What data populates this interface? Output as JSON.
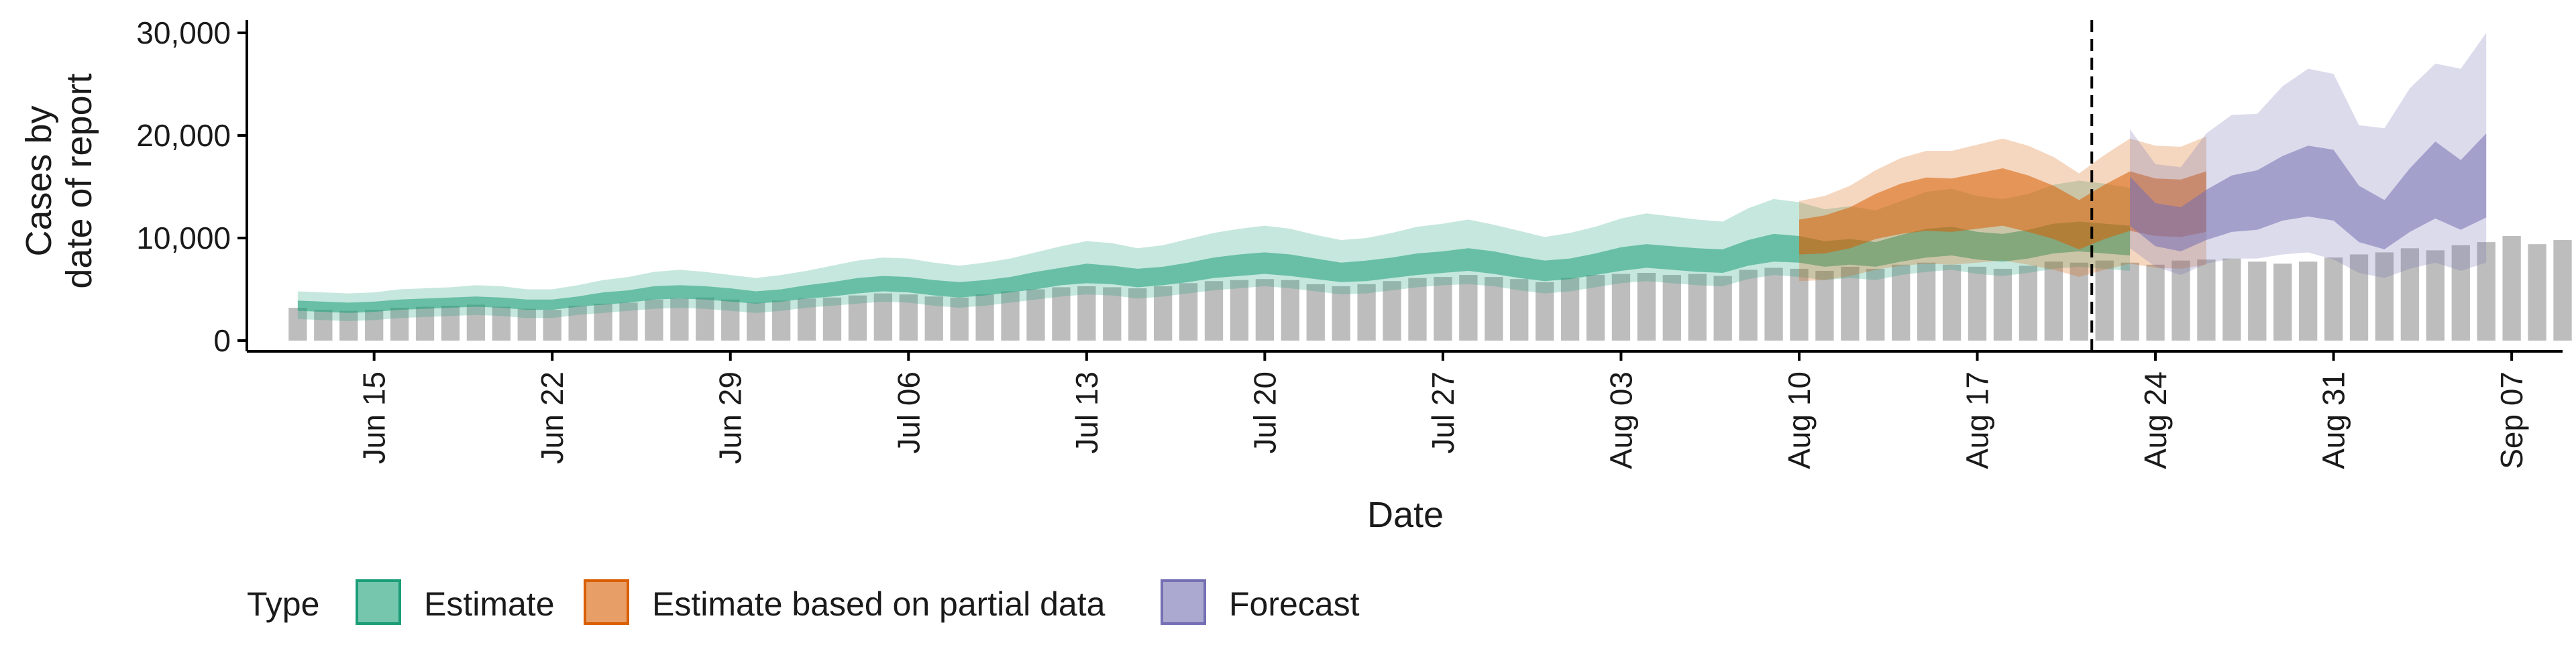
{
  "chart_data": {
    "type": "bar",
    "xlabel": "Date",
    "ylabel": [
      "Cases by",
      "date of report"
    ],
    "ylim": [
      0,
      31000
    ],
    "yticks": [
      0,
      10000,
      20000,
      30000
    ],
    "ytick_labels": [
      "0",
      "10,000",
      "20,000",
      "30,000"
    ],
    "xlim": [
      "2021-06-10",
      "2021-09-09"
    ],
    "xticks": [
      "2021-06-15",
      "2021-06-22",
      "2021-06-29",
      "2021-07-06",
      "2021-07-13",
      "2021-07-20",
      "2021-07-27",
      "2021-08-03",
      "2021-08-10",
      "2021-08-17",
      "2021-08-24",
      "2021-08-31",
      "2021-09-07"
    ],
    "xtick_labels": [
      "Jun 15",
      "Jun 22",
      "Jun 29",
      "Jul 06",
      "Jul 13",
      "Jul 20",
      "Jul 27",
      "Aug 03",
      "Aug 10",
      "Aug 17",
      "Aug 24",
      "Aug 31",
      "Sep 07"
    ],
    "forecast_date": "2021-08-22",
    "bar_start_date": "2021-06-12",
    "reported_cases": [
      3200,
      3000,
      2900,
      3000,
      3200,
      3300,
      3400,
      3500,
      3300,
      3100,
      3000,
      3400,
      3600,
      3700,
      4000,
      4100,
      4200,
      4000,
      3700,
      3900,
      4100,
      4200,
      4400,
      4600,
      4500,
      4300,
      4200,
      4500,
      4800,
      5000,
      5200,
      5300,
      5200,
      5100,
      5300,
      5600,
      5800,
      5900,
      6000,
      5900,
      5500,
      5300,
      5500,
      5800,
      6100,
      6200,
      6400,
      6200,
      6000,
      5700,
      6100,
      6400,
      6500,
      6600,
      6400,
      6500,
      6300,
      6900,
      7100,
      7000,
      6800,
      7200,
      7000,
      7400,
      7600,
      7400,
      7200,
      7000,
      7300,
      7700,
      7600,
      7800,
      7600,
      7400,
      7800,
      7900,
      8000,
      7700,
      7500,
      7700,
      8100,
      8400,
      8600,
      9000,
      8800,
      9300,
      9600,
      10200,
      9400,
      9800,
      10600
    ],
    "series": [
      {
        "name": "Estimate",
        "color": "#1b9e77",
        "start_date": "2021-06-12",
        "median": [
          3400,
          3300,
          3200,
          3300,
          3500,
          3600,
          3700,
          3800,
          3700,
          3500,
          3500,
          3800,
          4100,
          4300,
          4600,
          4700,
          4600,
          4400,
          4200,
          4400,
          4700,
          5000,
          5300,
          5500,
          5400,
          5100,
          4900,
          5100,
          5400,
          5800,
          6200,
          6500,
          6300,
          6000,
          6200,
          6600,
          7000,
          7300,
          7500,
          7300,
          6900,
          6600,
          6700,
          7000,
          7400,
          7600,
          7800,
          7500,
          7100,
          6700,
          6900,
          7400,
          7900,
          8200,
          8000,
          7800,
          7700,
          8500,
          9000,
          8800,
          8400,
          8600,
          8300,
          8900,
          9400,
          9600,
          9200,
          9000,
          9300,
          9900,
          10100,
          9900,
          9700
        ],
        "inner_low": [
          2900,
          2800,
          2700,
          2800,
          3000,
          3100,
          3200,
          3300,
          3200,
          3000,
          3000,
          3300,
          3500,
          3700,
          4000,
          4100,
          4000,
          3800,
          3600,
          3800,
          4100,
          4300,
          4600,
          4800,
          4700,
          4400,
          4200,
          4400,
          4700,
          5000,
          5400,
          5600,
          5500,
          5200,
          5400,
          5700,
          6100,
          6300,
          6500,
          6300,
          6000,
          5700,
          5800,
          6100,
          6400,
          6600,
          6800,
          6500,
          6100,
          5800,
          6000,
          6400,
          6800,
          7100,
          6900,
          6700,
          6600,
          7300,
          7700,
          7600,
          7200,
          7400,
          7200,
          7700,
          8100,
          8300,
          7900,
          7700,
          8000,
          8500,
          8700,
          8500,
          8300
        ],
        "inner_high": [
          3900,
          3800,
          3700,
          3800,
          4000,
          4100,
          4200,
          4300,
          4200,
          4000,
          4000,
          4300,
          4700,
          4900,
          5300,
          5400,
          5300,
          5100,
          4800,
          5000,
          5400,
          5700,
          6100,
          6300,
          6200,
          5900,
          5700,
          5900,
          6200,
          6700,
          7100,
          7500,
          7300,
          7000,
          7200,
          7600,
          8100,
          8400,
          8600,
          8400,
          8000,
          7600,
          7800,
          8100,
          8500,
          8700,
          9000,
          8700,
          8200,
          7800,
          8000,
          8500,
          9100,
          9400,
          9200,
          9000,
          8900,
          9800,
          10400,
          10200,
          9700,
          9900,
          9600,
          10300,
          10900,
          11100,
          10600,
          10400,
          10800,
          11400,
          11600,
          11400,
          11200
        ],
        "outer_low": [
          2100,
          2000,
          1900,
          2000,
          2200,
          2300,
          2400,
          2500,
          2400,
          2200,
          2200,
          2500,
          2700,
          2900,
          3100,
          3200,
          3100,
          2900,
          2700,
          2900,
          3200,
          3400,
          3600,
          3800,
          3700,
          3400,
          3200,
          3400,
          3700,
          4000,
          4300,
          4500,
          4400,
          4100,
          4300,
          4600,
          4900,
          5100,
          5300,
          5100,
          4800,
          4500,
          4600,
          4900,
          5200,
          5400,
          5500,
          5300,
          4900,
          4600,
          4800,
          5200,
          5600,
          5800,
          5600,
          5400,
          5300,
          6000,
          6400,
          6200,
          5900,
          6100,
          5900,
          6400,
          6700,
          6900,
          6500,
          6300,
          6600,
          7000,
          7200,
          7000,
          6800
        ],
        "outer_high": [
          4800,
          4700,
          4600,
          4700,
          5000,
          5100,
          5200,
          5400,
          5300,
          5000,
          5000,
          5400,
          5900,
          6200,
          6700,
          6900,
          6700,
          6400,
          6100,
          6400,
          6800,
          7300,
          7800,
          8100,
          8000,
          7600,
          7300,
          7600,
          8000,
          8600,
          9200,
          9700,
          9500,
          9000,
          9300,
          9900,
          10500,
          10900,
          11200,
          10900,
          10300,
          9800,
          10000,
          10500,
          11100,
          11400,
          11800,
          11300,
          10700,
          10100,
          10500,
          11100,
          11900,
          12400,
          12100,
          11800,
          11600,
          12900,
          13800,
          13500,
          12800,
          13100,
          12700,
          13600,
          14500,
          14800,
          14100,
          13800,
          14300,
          15200,
          15600,
          15300,
          14900
        ]
      },
      {
        "name": "Estimate based on partial data",
        "color": "#d95f02",
        "start_date": "2021-08-10",
        "median": [
          10000,
          10300,
          11000,
          12000,
          12800,
          13300,
          13200,
          13600,
          14000,
          13400,
          12600,
          11400,
          12600,
          13600,
          13000,
          12900,
          13500
        ],
        "inner_low": [
          8400,
          8500,
          9000,
          9900,
          10400,
          10700,
          10600,
          10900,
          11200,
          10600,
          9900,
          8900,
          9900,
          10700,
          10200,
          10100,
          10600
        ],
        "inner_high": [
          11800,
          12200,
          13000,
          14300,
          15300,
          15900,
          15800,
          16300,
          16800,
          16100,
          15100,
          13700,
          15200,
          16500,
          15800,
          15700,
          16500
        ],
        "outer_low": [
          5800,
          5900,
          6300,
          6900,
          7300,
          7500,
          7400,
          7600,
          7800,
          7400,
          6900,
          6200,
          6900,
          7500,
          7100,
          7000,
          7400
        ],
        "outer_high": [
          13600,
          14100,
          15100,
          16600,
          17800,
          18500,
          18500,
          19100,
          19700,
          19000,
          17900,
          16300,
          18100,
          19700,
          19000,
          18900,
          19900
        ]
      },
      {
        "name": "Forecast",
        "color": "#7570b3",
        "start_date": "2021-08-23",
        "median": [
          13600,
          11400,
          10900,
          12400,
          13500,
          13800,
          15200,
          15900,
          15500,
          12500,
          11500,
          14000,
          16000,
          14600,
          16300
        ],
        "inner_low": [
          11200,
          9200,
          8700,
          9800,
          10600,
          10800,
          11700,
          12100,
          11700,
          9600,
          8900,
          10600,
          11900,
          10800,
          12000
        ],
        "inner_high": [
          16000,
          13400,
          13000,
          14700,
          16100,
          16600,
          18000,
          19000,
          18600,
          15100,
          13700,
          16800,
          19400,
          17600,
          20200
        ],
        "outer_low": [
          9000,
          7200,
          6400,
          7500,
          8000,
          8000,
          8400,
          8600,
          7900,
          6600,
          6100,
          7000,
          7600,
          6800,
          7600
        ],
        "outer_high": [
          20600,
          17200,
          16900,
          20200,
          22000,
          22100,
          24800,
          26500,
          26000,
          21000,
          20700,
          24600,
          27000,
          26500,
          30000
        ]
      }
    ],
    "legend": {
      "title": "Type",
      "position": "bottom",
      "items": [
        "Estimate",
        "Estimate based on partial data",
        "Forecast"
      ]
    },
    "grid": false
  }
}
